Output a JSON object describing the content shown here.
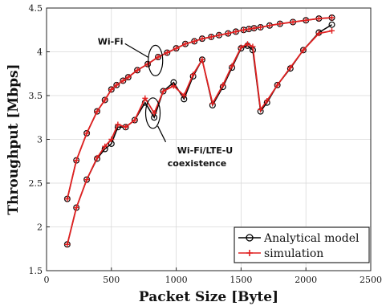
{
  "chart_data": {
    "type": "line",
    "xlabel": "Packet Size [Byte]",
    "ylabel": "Throughput [Mbps]",
    "xlim": [
      0,
      2500
    ],
    "ylim": [
      1.5,
      4.5
    ],
    "xticks": [
      0,
      500,
      1000,
      1500,
      2000,
      2500
    ],
    "yticks": [
      1.5,
      2,
      2.5,
      3,
      3.5,
      4,
      4.5
    ],
    "grid": true,
    "legend_position": "bottom-right",
    "colors": {
      "analytical": "#000000",
      "simulation": "#e02020"
    },
    "annotations": [
      {
        "label": "Wi-Fi",
        "at": [
          840,
          3.9
        ]
      },
      {
        "label_lines": [
          "Wi-Fi/LTE-U",
          "coexistence"
        ],
        "at": [
          820,
          3.3
        ]
      }
    ],
    "series": [
      {
        "name": "Analytical model",
        "marker": "circle",
        "group": "Wi-Fi",
        "x": [
          160,
          230,
          310,
          390,
          450,
          500,
          540,
          590,
          630,
          700,
          780,
          860,
          930,
          1000,
          1070,
          1140,
          1200,
          1270,
          1330,
          1400,
          1460,
          1520,
          1560,
          1600,
          1650,
          1720,
          1800,
          1900,
          2000,
          2100,
          2200
        ],
        "values": [
          2.32,
          2.76,
          3.07,
          3.32,
          3.45,
          3.57,
          3.62,
          3.67,
          3.71,
          3.79,
          3.86,
          3.94,
          3.99,
          4.04,
          4.09,
          4.12,
          4.15,
          4.17,
          4.19,
          4.21,
          4.23,
          4.25,
          4.26,
          4.27,
          4.28,
          4.3,
          4.32,
          4.34,
          4.36,
          4.38,
          4.39
        ]
      },
      {
        "name": "simulation",
        "marker": "plus",
        "group": "Wi-Fi",
        "x": [
          160,
          230,
          310,
          390,
          450,
          500,
          540,
          590,
          630,
          700,
          780,
          860,
          930,
          1000,
          1070,
          1140,
          1200,
          1270,
          1330,
          1400,
          1460,
          1520,
          1560,
          1600,
          1650,
          1720,
          1800,
          1900,
          2000,
          2100,
          2200
        ],
        "values": [
          2.32,
          2.76,
          3.07,
          3.32,
          3.45,
          3.57,
          3.62,
          3.67,
          3.71,
          3.79,
          3.86,
          3.94,
          3.99,
          4.04,
          4.09,
          4.12,
          4.15,
          4.17,
          4.19,
          4.21,
          4.23,
          4.25,
          4.26,
          4.27,
          4.28,
          4.3,
          4.32,
          4.34,
          4.36,
          4.38,
          4.39
        ]
      },
      {
        "name": "Analytical model",
        "marker": "circle",
        "group": "Wi-Fi/LTE-U coexistence",
        "x": [
          160,
          230,
          310,
          390,
          450,
          500,
          550,
          610,
          680,
          760,
          830,
          900,
          980,
          1060,
          1130,
          1200,
          1280,
          1360,
          1430,
          1500,
          1550,
          1590,
          1650,
          1700,
          1780,
          1880,
          1980,
          2100,
          2200
        ],
        "values": [
          1.8,
          2.22,
          2.54,
          2.78,
          2.89,
          2.95,
          3.14,
          3.14,
          3.22,
          3.42,
          3.25,
          3.55,
          3.65,
          3.46,
          3.72,
          3.91,
          3.39,
          3.6,
          3.82,
          4.04,
          4.07,
          4.02,
          3.32,
          3.42,
          3.62,
          3.81,
          4.02,
          4.22,
          4.31
        ]
      },
      {
        "name": "simulation",
        "marker": "plus",
        "group": "Wi-Fi/LTE-U coexistence",
        "x": [
          160,
          230,
          310,
          390,
          450,
          500,
          550,
          610,
          680,
          760,
          830,
          900,
          980,
          1060,
          1130,
          1200,
          1280,
          1360,
          1430,
          1500,
          1550,
          1590,
          1650,
          1700,
          1780,
          1880,
          1980,
          2100,
          2200
        ],
        "values": [
          1.8,
          2.22,
          2.54,
          2.79,
          2.92,
          3.0,
          3.17,
          3.14,
          3.22,
          3.47,
          3.3,
          3.55,
          3.61,
          3.5,
          3.74,
          3.91,
          3.41,
          3.62,
          3.84,
          4.05,
          4.09,
          4.06,
          3.34,
          3.44,
          3.62,
          3.82,
          4.02,
          4.21,
          4.24
        ]
      }
    ]
  }
}
